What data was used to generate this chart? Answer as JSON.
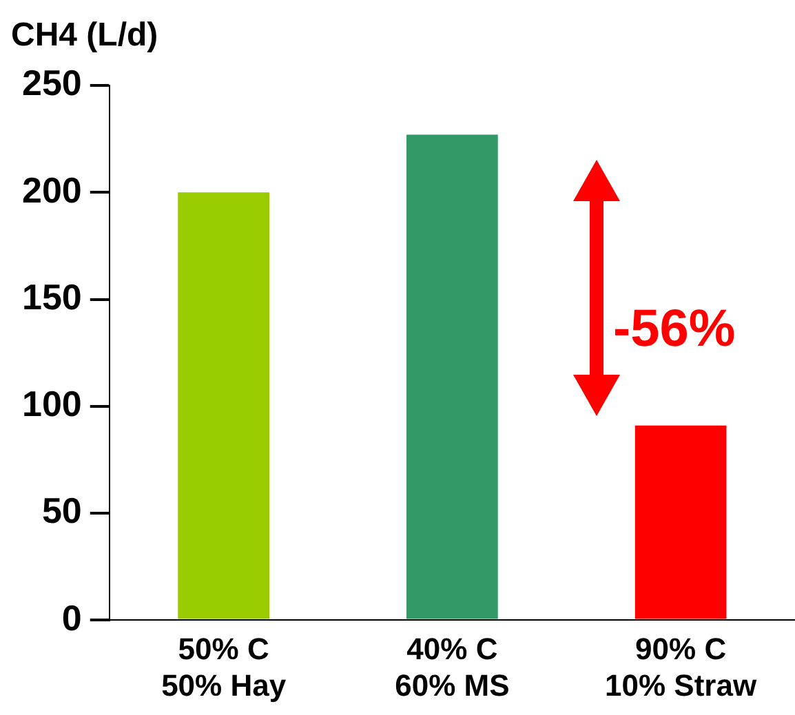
{
  "chart_data": {
    "type": "bar",
    "ylabel": "CH4 (L/d)",
    "categories": [
      "50% C\n50% Hay",
      "40% C\n60% MS",
      "90% C\n10% Straw"
    ],
    "values": [
      200,
      227,
      91
    ],
    "colors": [
      "#99cc00",
      "#339966",
      "#ff0000"
    ],
    "ylim": [
      0,
      250
    ],
    "yticks": [
      0,
      50,
      100,
      150,
      200,
      250
    ],
    "grid": false,
    "legend": false,
    "annotations": [
      "-56%"
    ]
  }
}
